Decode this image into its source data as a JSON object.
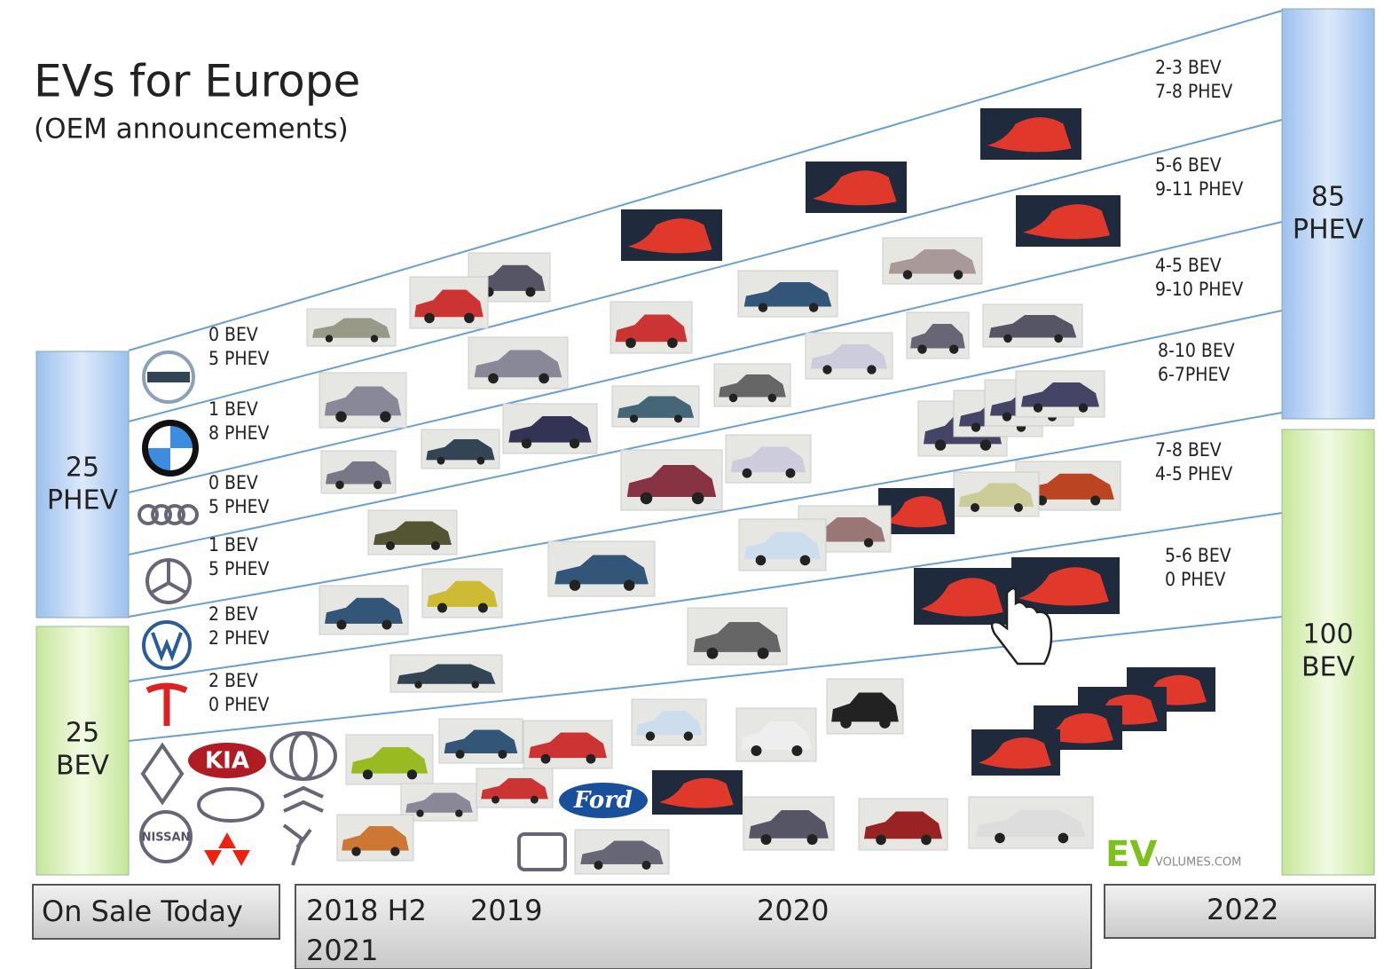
{
  "header": {
    "title": "EVs for Europe",
    "subtitle": "(OEM announcements)"
  },
  "today": {
    "phev": {
      "count": "25",
      "label": "PHEV"
    },
    "bev": {
      "count": "25",
      "label": "BEV"
    }
  },
  "target": {
    "phev": {
      "count": "85",
      "label": "PHEV"
    },
    "bev": {
      "count": "100",
      "label": "BEV"
    }
  },
  "oem_counts": [
    [
      "0 BEV",
      "5 PHEV"
    ],
    [
      "1 BEV",
      "8 PHEV"
    ],
    [
      "0 BEV",
      "5 PHEV"
    ],
    [
      "1 BEV",
      "5 PHEV"
    ],
    [
      "2 BEV",
      "2 PHEV"
    ],
    [
      "2 BEV",
      "0 PHEV"
    ]
  ],
  "announced_counts": [
    [
      "2-3 BEV",
      "7-8 PHEV"
    ],
    [
      "5-6 BEV",
      "9-11 PHEV"
    ],
    [
      "4-5 BEV",
      "9-10 PHEV"
    ],
    [
      "8-10 BEV",
      "6-7PHEV"
    ],
    [
      "7-8 BEV",
      "4-5 PHEV"
    ],
    [
      "5-6 BEV",
      "0 PHEV"
    ]
  ],
  "logos": {
    "kia": "KIA",
    "ford": "Ford",
    "nissan": "NISSAN"
  },
  "timeline": {
    "today": "On Sale Today",
    "h2": "2018 H2",
    "y2019": "2019",
    "y2020": "2020",
    "y2021": "2021",
    "y2022": "2022"
  },
  "brand": {
    "ev": "EV",
    "site": "VOLUMES.COM"
  }
}
